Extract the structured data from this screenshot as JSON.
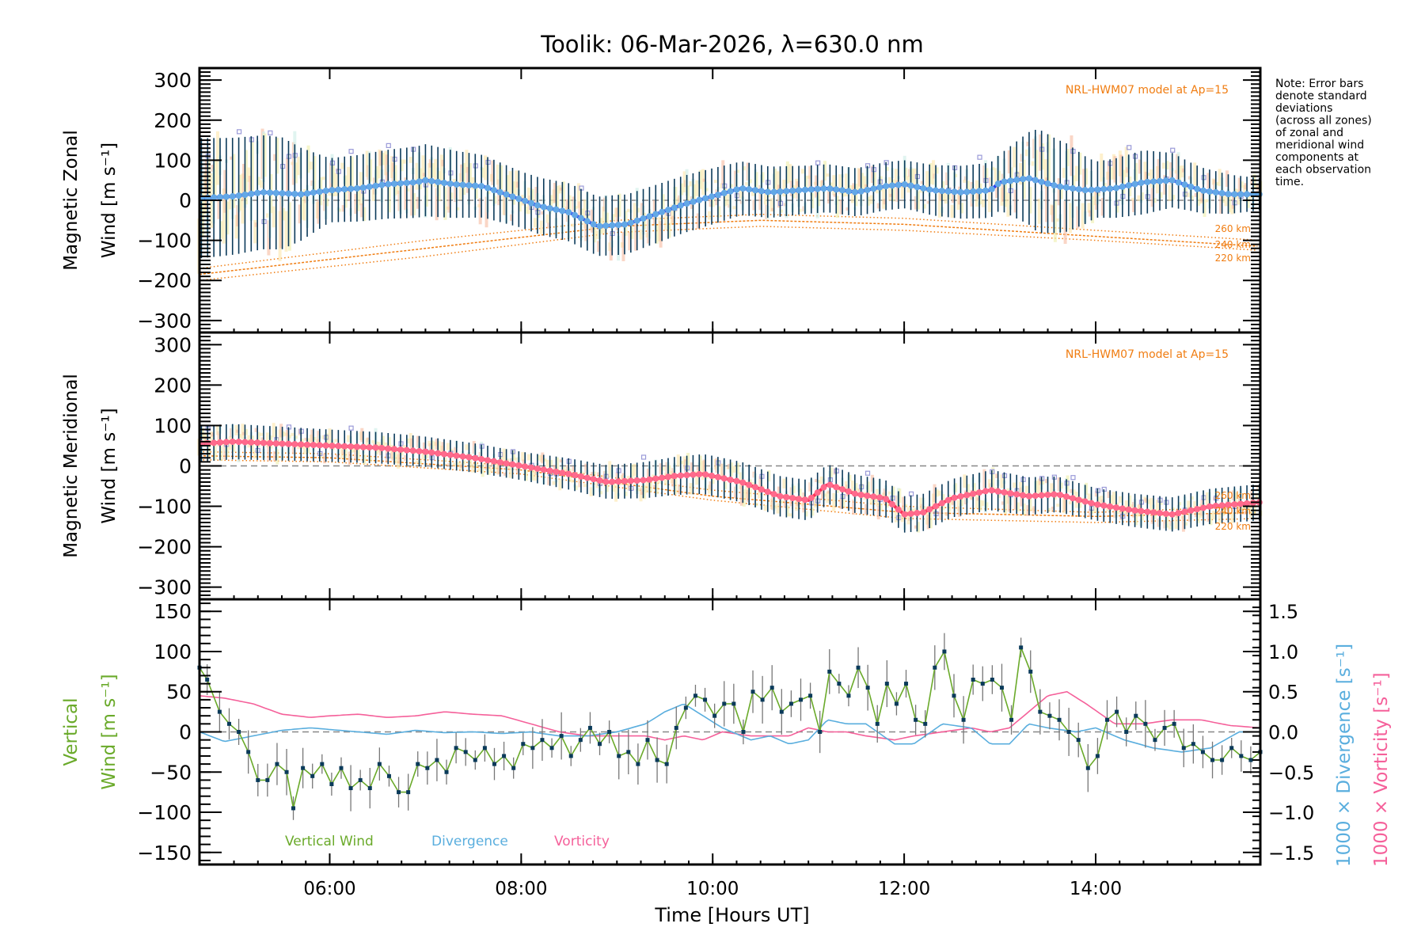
{
  "chart_data": {
    "type": "line",
    "title": "Toolik: 06-Mar-2026, λ=630.0 nm",
    "xlabel": "Time [Hours UT]",
    "xlim": [
      4.64,
      15.72
    ],
    "xticks": [
      6,
      8,
      10,
      12,
      14
    ],
    "xtick_labels": [
      "06:00",
      "08:00",
      "10:00",
      "12:00",
      "14:00"
    ],
    "note": [
      "Note: Error bars",
      "denote standard",
      "deviations",
      "(across all zones)",
      "of zonal and",
      "meridional wind",
      "components at",
      "each observation",
      "time."
    ],
    "colors": {
      "zonal": "#2b3cf0",
      "zonal_marker": "#63a8e6",
      "meridional": "#ff2e55",
      "meridional_marker": "#ff6a8c",
      "errorbar": "#0b3a5a",
      "model": "#f07d12",
      "vertical": "#6aaa2a",
      "divergence": "#5aaede",
      "vorticity": "#f5609a",
      "zone_scatter": "#9a9ad8"
    },
    "panels": [
      {
        "id": "zonal",
        "ylabel_line1": "Magnetic Zonal",
        "ylabel_line2": "Wind [m s⁻¹]",
        "ylim": [
          -330,
          330
        ],
        "yticks": [
          300,
          200,
          100,
          0,
          -100,
          -200,
          -300
        ],
        "ytick_labels": [
          "300",
          "200",
          "100",
          "0",
          "−100",
          "−200",
          "−300"
        ],
        "model_label": "NRL-HWM07 model at Ap=15",
        "model_heights": [
          "260 km",
          "240 km",
          "220 km"
        ],
        "series": [
          {
            "name": "Zonal wind mean",
            "x": [
              4.64,
              5.0,
              5.3,
              5.7,
              6.0,
              6.3,
              6.6,
              6.9,
              7.0,
              7.3,
              7.6,
              7.9,
              8.2,
              8.5,
              8.8,
              9.1,
              9.4,
              9.7,
              10.0,
              10.3,
              10.6,
              10.9,
              11.2,
              11.5,
              11.8,
              12.0,
              12.3,
              12.6,
              12.9,
              13.0,
              13.3,
              13.6,
              13.9,
              14.2,
              14.5,
              14.8,
              15.1,
              15.4,
              15.72
            ],
            "y": [
              5,
              10,
              20,
              15,
              25,
              30,
              40,
              45,
              50,
              40,
              35,
              10,
              -15,
              -30,
              -65,
              -60,
              -35,
              -10,
              10,
              30,
              20,
              25,
              30,
              20,
              35,
              40,
              25,
              20,
              25,
              45,
              55,
              35,
              25,
              30,
              45,
              50,
              25,
              15,
              15
            ]
          },
          {
            "name": "Error bar half-width",
            "x": [
              4.64,
              5.5,
              6.0,
              7.0,
              8.0,
              9.0,
              10.0,
              11.0,
              12.0,
              13.0,
              13.4,
              13.7,
              14.0,
              14.5,
              15.0,
              15.72
            ],
            "y": [
              150,
              140,
              80,
              90,
              70,
              75,
              70,
              60,
              60,
              70,
              130,
              110,
              70,
              80,
              60,
              40
            ]
          },
          {
            "name": "Model 260 km",
            "x": [
              4.64,
              7.0,
              9.0,
              10.5,
              12.0,
              14.0,
              15.72
            ],
            "y": [
              -170,
              -100,
              -50,
              -35,
              -45,
              -75,
              -100
            ]
          },
          {
            "name": "Model 240 km",
            "x": [
              4.64,
              7.0,
              9.0,
              10.5,
              12.0,
              14.0,
              15.72
            ],
            "y": [
              -185,
              -120,
              -65,
              -50,
              -60,
              -90,
              -115
            ]
          },
          {
            "name": "Model 220 km",
            "x": [
              4.64,
              7.0,
              9.0,
              10.5,
              12.0,
              14.0,
              15.72
            ],
            "y": [
              -200,
              -140,
              -80,
              -65,
              -75,
              -100,
              -125
            ]
          }
        ]
      },
      {
        "id": "meridional",
        "ylabel_line1": "Magnetic Meridional",
        "ylabel_line2": "Wind [m s⁻¹]",
        "ylim": [
          -330,
          330
        ],
        "yticks": [
          300,
          200,
          100,
          0,
          -100,
          -200,
          -300
        ],
        "ytick_labels": [
          "300",
          "200",
          "100",
          "0",
          "−100",
          "−200",
          "−300"
        ],
        "model_label": "NRL-HWM07 model at Ap=15",
        "model_heights": [
          "260 km",
          "240 km",
          "220 km"
        ],
        "series": [
          {
            "name": "Meridional wind mean",
            "x": [
              4.64,
              5.0,
              5.5,
              6.0,
              6.5,
              7.0,
              7.5,
              8.0,
              8.5,
              8.9,
              9.3,
              9.6,
              9.9,
              10.3,
              10.7,
              11.0,
              11.2,
              11.5,
              11.8,
              12.0,
              12.2,
              12.5,
              12.9,
              13.3,
              13.6,
              14.0,
              14.4,
              14.8,
              15.2,
              15.72
            ],
            "y": [
              55,
              60,
              55,
              50,
              45,
              35,
              20,
              0,
              -20,
              -40,
              -35,
              -25,
              -20,
              -40,
              -75,
              -85,
              -45,
              -70,
              -80,
              -120,
              -115,
              -80,
              -60,
              -75,
              -70,
              -95,
              -110,
              -120,
              -100,
              -90
            ]
          },
          {
            "name": "Error bar half-width",
            "x": [
              4.64,
              6.0,
              8.0,
              10.0,
              11.0,
              12.0,
              13.0,
              14.0,
              15.72
            ],
            "y": [
              45,
              40,
              35,
              50,
              50,
              45,
              50,
              40,
              45
            ]
          },
          {
            "name": "Model 260 km",
            "x": [
              4.64,
              6.0,
              8.0,
              10.0,
              12.0,
              14.0,
              15.72
            ],
            "y": [
              35,
              30,
              0,
              -60,
              -100,
              -115,
              -100
            ]
          },
          {
            "name": "Model 240 km",
            "x": [
              4.64,
              6.0,
              8.0,
              10.0,
              12.0,
              14.0,
              15.72
            ],
            "y": [
              25,
              20,
              -10,
              -75,
              -115,
              -125,
              -115
            ]
          },
          {
            "name": "Model 220 km",
            "x": [
              4.64,
              6.0,
              8.0,
              10.0,
              12.0,
              14.0,
              15.72
            ],
            "y": [
              15,
              10,
              -20,
              -85,
              -130,
              -140,
              -130
            ]
          }
        ]
      },
      {
        "id": "vertical",
        "ylabel_line1": "Vertical",
        "ylabel_line2": "Wind [m s⁻¹]",
        "ylim": [
          -165,
          165
        ],
        "yticks": [
          150,
          100,
          50,
          0,
          -50,
          -100,
          -150
        ],
        "ytick_labels": [
          "150",
          "100",
          "50",
          "0",
          "−50",
          "−100",
          "−150"
        ],
        "right_ylim": [
          -1.65,
          1.65
        ],
        "right_yticks": [
          1.5,
          1.0,
          0.5,
          0.0,
          -0.5,
          -1.0,
          -1.5
        ],
        "right_ytick_labels": [
          "1.5",
          "1.0",
          "0.5",
          "0.0",
          "−0.5",
          "−1.0",
          "−1.5"
        ],
        "right_label_divergence": "1000 × Divergence [s⁻¹]",
        "right_label_vorticity": "1000 × Vorticity [s⁻¹]",
        "legend": [
          "Vertical Wind",
          "Divergence",
          "Vorticity"
        ],
        "series": [
          {
            "name": "Vertical Wind",
            "x": [
              4.64,
              4.72,
              4.85,
              4.95,
              5.05,
              5.15,
              5.25,
              5.35,
              5.45,
              5.55,
              5.62,
              5.72,
              5.82,
              5.92,
              6.02,
              6.12,
              6.22,
              6.32,
              6.42,
              6.52,
              6.62,
              6.72,
              6.82,
              6.92,
              7.02,
              7.12,
              7.22,
              7.32,
              7.42,
              7.52,
              7.62,
              7.72,
              7.82,
              7.92,
              8.02,
              8.12,
              8.22,
              8.32,
              8.42,
              8.52,
              8.62,
              8.72,
              8.82,
              8.92,
              9.02,
              9.12,
              9.22,
              9.32,
              9.42,
              9.52,
              9.62,
              9.72,
              9.82,
              9.92,
              10.02,
              10.12,
              10.22,
              10.32,
              10.42,
              10.52,
              10.62,
              10.72,
              10.82,
              10.92,
              11.02,
              11.12,
              11.22,
              11.32,
              11.42,
              11.52,
              11.62,
              11.72,
              11.82,
              11.92,
              12.02,
              12.12,
              12.22,
              12.32,
              12.42,
              12.52,
              12.62,
              12.72,
              12.82,
              12.92,
              13.02,
              13.12,
              13.22,
              13.32,
              13.42,
              13.52,
              13.62,
              13.72,
              13.82,
              13.92,
              14.02,
              14.12,
              14.22,
              14.32,
              14.42,
              14.52,
              14.62,
              14.72,
              14.82,
              14.92,
              15.02,
              15.12,
              15.22,
              15.32,
              15.42,
              15.52,
              15.62,
              15.72
            ],
            "y": [
              80,
              65,
              25,
              10,
              0,
              -25,
              -60,
              -60,
              -40,
              -50,
              -95,
              -45,
              -55,
              -40,
              -65,
              -45,
              -70,
              -60,
              -70,
              -40,
              -55,
              -75,
              -75,
              -40,
              -45,
              -35,
              -50,
              -20,
              -25,
              -35,
              -20,
              -40,
              -30,
              -45,
              -15,
              -20,
              -10,
              -20,
              -5,
              -30,
              -10,
              5,
              -15,
              0,
              -30,
              -25,
              -40,
              -10,
              -35,
              -40,
              5,
              30,
              45,
              40,
              20,
              35,
              35,
              0,
              50,
              40,
              55,
              25,
              35,
              40,
              45,
              0,
              75,
              60,
              45,
              80,
              55,
              10,
              60,
              35,
              60,
              15,
              10,
              80,
              100,
              45,
              15,
              65,
              60,
              65,
              55,
              15,
              105,
              75,
              25,
              20,
              15,
              0,
              -10,
              -45,
              -30,
              15,
              25,
              0,
              20,
              10,
              -10,
              5,
              10,
              -20,
              -15,
              -25,
              -35,
              -35,
              -20,
              -30,
              -35,
              -25
            ],
            "err": 20
          },
          {
            "name": "Divergence",
            "x": [
              4.64,
              4.9,
              5.2,
              5.5,
              5.8,
              6.0,
              6.3,
              6.6,
              6.9,
              7.2,
              7.5,
              7.8,
              8.1,
              8.4,
              8.7,
              9.0,
              9.3,
              9.5,
              9.7,
              9.9,
              10.1,
              10.4,
              10.6,
              10.8,
              11.0,
              11.2,
              11.4,
              11.6,
              11.9,
              12.1,
              12.4,
              12.7,
              12.9,
              13.1,
              13.3,
              13.5,
              13.8,
              14.0,
              14.3,
              14.6,
              14.9,
              15.2,
              15.5,
              15.72
            ],
            "y": [
              0.0,
              -0.12,
              -0.05,
              0.02,
              0.05,
              0.03,
              0.0,
              -0.03,
              0.02,
              -0.01,
              0.0,
              -0.02,
              0.0,
              -0.05,
              -0.05,
              0.0,
              0.1,
              0.25,
              0.35,
              0.2,
              0.05,
              -0.1,
              -0.05,
              -0.15,
              -0.1,
              0.15,
              0.1,
              0.1,
              -0.15,
              -0.15,
              0.1,
              0.05,
              -0.15,
              -0.15,
              0.1,
              0.05,
              0.0,
              0.05,
              -0.1,
              -0.2,
              -0.25,
              -0.2,
              0.0,
              0.0
            ]
          },
          {
            "name": "Vorticity",
            "x": [
              4.64,
              4.9,
              5.2,
              5.5,
              5.8,
              6.0,
              6.3,
              6.6,
              6.9,
              7.2,
              7.5,
              7.8,
              8.1,
              8.4,
              8.7,
              9.0,
              9.3,
              9.5,
              9.7,
              9.9,
              10.1,
              10.4,
              10.6,
              10.8,
              11.0,
              11.2,
              11.4,
              11.6,
              11.9,
              12.1,
              12.4,
              12.7,
              12.9,
              13.1,
              13.3,
              13.5,
              13.7,
              13.9,
              14.2,
              14.5,
              14.8,
              15.1,
              15.4,
              15.72
            ],
            "y": [
              0.45,
              0.42,
              0.35,
              0.22,
              0.18,
              0.2,
              0.22,
              0.18,
              0.2,
              0.25,
              0.22,
              0.2,
              0.1,
              0.0,
              -0.05,
              -0.05,
              -0.05,
              -0.1,
              -0.05,
              -0.1,
              0.0,
              -0.05,
              -0.05,
              -0.05,
              0.05,
              0.0,
              0.0,
              -0.05,
              -0.1,
              -0.05,
              0.0,
              0.05,
              0.0,
              0.05,
              0.25,
              0.45,
              0.5,
              0.35,
              0.1,
              0.1,
              0.15,
              0.15,
              0.08,
              0.05
            ]
          }
        ]
      }
    ]
  }
}
